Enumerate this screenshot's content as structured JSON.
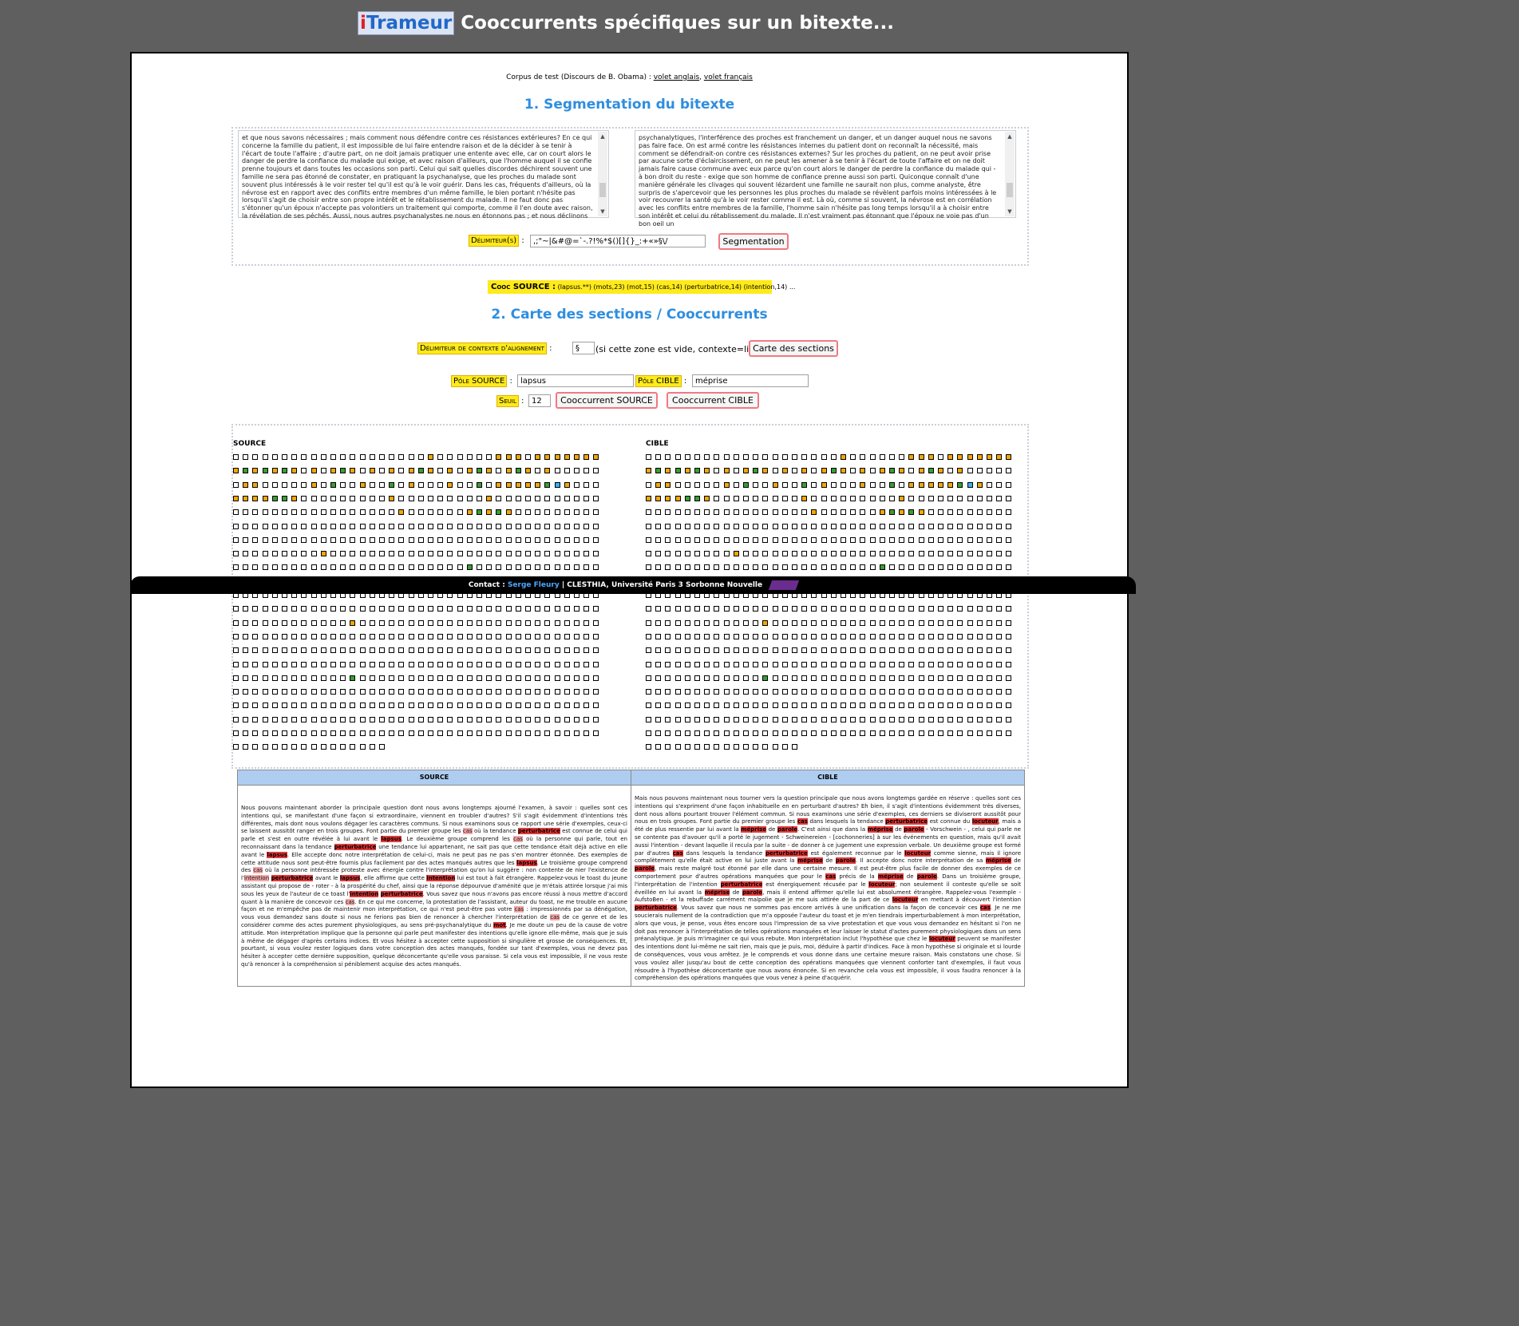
{
  "header": {
    "brand_i": "i",
    "brand_rest": "Trameur",
    "title": "Cooccurrents spécifiques sur un bitexte..."
  },
  "corpus": {
    "prefix": "Corpus de test (Discours de B. Obama) : ",
    "link_en": "volet anglais",
    "sep": ", ",
    "link_fr": "volet français"
  },
  "section1": {
    "title": "1. Segmentation du bitexte",
    "source_text": "et que nous savons nécessaires ; mais comment nous défendre contre ces résistances extérieures? En ce qui concerne la famille du patient, il est impossible de lui faire entendre raison et de la décider à se tenir à l'écart de toute l'affaire ; d'autre part, on ne doit jamais pratiquer une entente avec elle, car on court alors le danger de perdre la confiance du malade qui exige, et avec raison d'ailleurs, que l'homme auquel il se confie prenne toujours et dans toutes les occasions son parti. Celui qui sait quelles discordes déchirent souvent une famille ne sera pas étonné de constater, en pratiquant la psychanalyse, que les proches du malade sont souvent plus intéressés à le voir rester tel qu'il est qu'à le voir guérir. Dans les cas, fréquents d'ailleurs, où la névrose est en rapport avec des conflits entre membres d'un même famille, le bien portant n'hésite pas lorsqu'il s'agit de choisir entre son propre intérêt et le rétablissement du malade. Il ne faut donc pas s'étonner qu'un époux n'accepte pas volontiers un traitement qui comporte, comme il l'en doute avec raison, la révélation de ses péchés. Aussi, nous autres psychanalystes ne nous en étonnons pas ; et nous déclinons",
    "target_text": "psychanalytiques, l'interférence des proches est franchement un danger, et un danger auquel nous ne savons pas faire face. On est armé contre les résistances internes du patient dont on reconnaît la nécessité, mais comment se défendrait-on contre ces résistances externes? Sur les proches du patient, on ne peut avoir prise par aucune sorte d'éclaircissement, on ne peut les amener à se tenir à l'écart de toute l'affaire et on ne doit jamais faire cause commune avec eux parce qu'on court alors le danger de perdre la confiance du malade qui - à bon droit du reste - exige que son homme de confiance prenne aussi son parti. Quiconque connaît d'une manière générale les clivages qui souvent lézardent une famille ne saurait non plus, comme analyste, être surpris de s'apercevoir que les personnes les plus proches du malade se révèlent parfois moins intéressées à le voir recouvrer la santé qu'à le voir rester comme il est. Là où, comme si souvent, la névrose est en corrélation avec les conflits entre membres de la famille, l'homme sain n'hésite pas long temps lorsqu'il a à choisir entre son intérêt et celui du rétablissement du malade. Il n'est vraiment pas étonnant que l'époux ne voie pas d'un bon oeil un",
    "delim_label": "Délimiteur(s)",
    "delim_value": ",;\"~|&#@=`-.?!%*$()[]{}_:+«»§\\/",
    "segment_button": "Segmentation"
  },
  "cooc": {
    "label": "Cooc SOURCE :",
    "value": "(lapsus.**) (mots,23) (mot,15) (cas,14) (perturbatrice,14) (intention,14) ..."
  },
  "section2": {
    "title": "2. Carte des sections / Cooccurrents",
    "ctx_label": "Délimiteur de contexte d'alignement",
    "ctx_value": "§",
    "ctx_note": "(si cette zone est vide, contexte=ligne)",
    "map_button": "Carte des sections",
    "src_pole_label": "Pôle SOURCE",
    "src_pole_value": "lapsus",
    "tgt_pole_label": "Pôle CIBLE",
    "tgt_pole_value": "méprise",
    "seuil_label": "Seuil",
    "seuil_value": "12",
    "src_button": "Cooccurrent SOURCE",
    "tgt_button": "Cooccurrent CIBLE",
    "colon": ":"
  },
  "grids": {
    "source_label": "SOURCE",
    "target_label": "CIBLE",
    "colors": {
      "orange": "#f6a800",
      "green": "#3a9e33",
      "cyan": "#3cb0f0"
    }
  },
  "footer": {
    "prefix": "Contact : ",
    "name": "Serge Fleury",
    "suffix": " | CLESTHIA, Université Paris 3 Sorbonne Nouvelle"
  },
  "results": {
    "source_head": "SOURCE",
    "target_head": "CIBLE"
  }
}
